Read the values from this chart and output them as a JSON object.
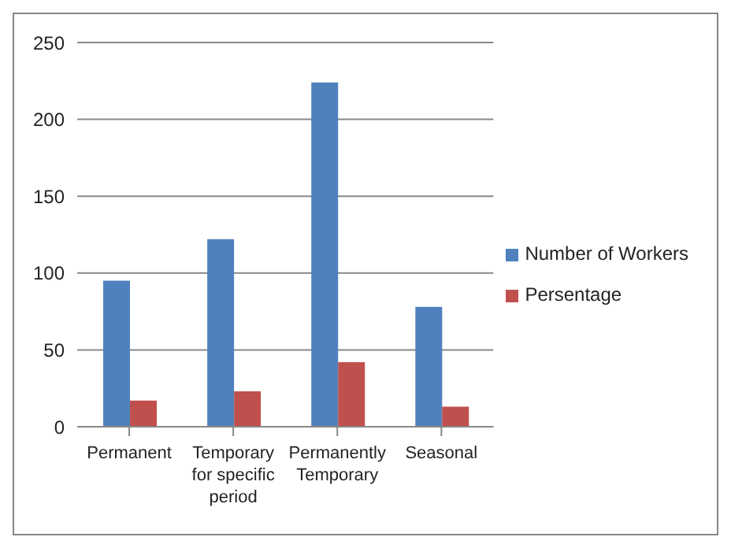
{
  "chart_data": {
    "type": "bar",
    "categories": [
      "Permanent",
      "Temporary for specific period",
      "Permanently Temporary",
      "Seasonal"
    ],
    "series": [
      {
        "name": "Number of Workers",
        "color": "#4f81bd",
        "values": [
          95,
          122,
          224,
          78
        ]
      },
      {
        "name": "Persentage",
        "color": "#c0504d",
        "values": [
          17,
          23,
          42,
          13
        ]
      }
    ],
    "ylim": [
      0,
      250
    ],
    "yticks": [
      0,
      50,
      100,
      150,
      200,
      250
    ],
    "grid": "y",
    "legend": "right"
  }
}
